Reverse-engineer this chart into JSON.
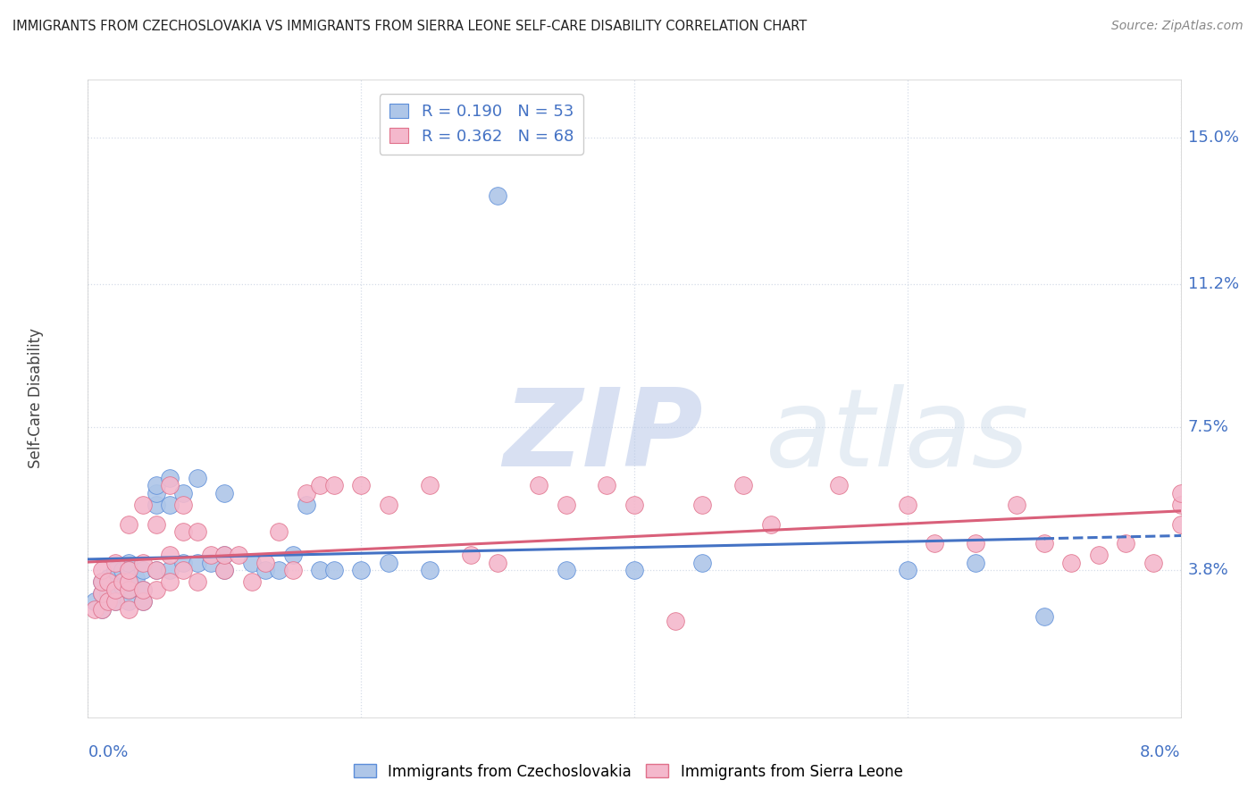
{
  "title": "IMMIGRANTS FROM CZECHOSLOVAKIA VS IMMIGRANTS FROM SIERRA LEONE SELF-CARE DISABILITY CORRELATION CHART",
  "source": "Source: ZipAtlas.com",
  "ylabel": "Self-Care Disability",
  "ytick_labels": [
    "15.0%",
    "11.2%",
    "7.5%",
    "3.8%"
  ],
  "ytick_values": [
    0.15,
    0.112,
    0.075,
    0.038
  ],
  "xlim": [
    0.0,
    0.08
  ],
  "ylim": [
    0.0,
    0.165
  ],
  "color_czech": "#aec6e8",
  "color_sierra": "#f4b8cc",
  "color_czech_edge": "#5b8dd9",
  "color_sierra_edge": "#e0708a",
  "color_line_czech": "#4472c4",
  "color_line_sierra": "#d9607a",
  "color_text_blue": "#4472c4",
  "color_grid": "#d5dce8",
  "czech_x": [
    0.0005,
    0.001,
    0.001,
    0.001,
    0.0015,
    0.0015,
    0.002,
    0.002,
    0.002,
    0.002,
    0.0025,
    0.0025,
    0.003,
    0.003,
    0.003,
    0.003,
    0.003,
    0.0035,
    0.004,
    0.004,
    0.004,
    0.005,
    0.005,
    0.005,
    0.005,
    0.006,
    0.006,
    0.006,
    0.007,
    0.007,
    0.008,
    0.008,
    0.009,
    0.01,
    0.01,
    0.01,
    0.012,
    0.013,
    0.014,
    0.015,
    0.016,
    0.017,
    0.018,
    0.02,
    0.022,
    0.025,
    0.03,
    0.035,
    0.04,
    0.045,
    0.06,
    0.065,
    0.07
  ],
  "czech_y": [
    0.03,
    0.028,
    0.032,
    0.035,
    0.032,
    0.036,
    0.03,
    0.033,
    0.036,
    0.038,
    0.034,
    0.038,
    0.03,
    0.033,
    0.035,
    0.038,
    0.04,
    0.036,
    0.03,
    0.033,
    0.038,
    0.038,
    0.055,
    0.058,
    0.06,
    0.038,
    0.055,
    0.062,
    0.04,
    0.058,
    0.04,
    0.062,
    0.04,
    0.038,
    0.042,
    0.058,
    0.04,
    0.038,
    0.038,
    0.042,
    0.055,
    0.038,
    0.038,
    0.038,
    0.04,
    0.038,
    0.135,
    0.038,
    0.038,
    0.04,
    0.038,
    0.04,
    0.026
  ],
  "sierra_x": [
    0.0005,
    0.001,
    0.001,
    0.001,
    0.001,
    0.0015,
    0.0015,
    0.002,
    0.002,
    0.002,
    0.0025,
    0.003,
    0.003,
    0.003,
    0.003,
    0.003,
    0.004,
    0.004,
    0.004,
    0.004,
    0.005,
    0.005,
    0.005,
    0.006,
    0.006,
    0.006,
    0.007,
    0.007,
    0.007,
    0.008,
    0.008,
    0.009,
    0.01,
    0.01,
    0.011,
    0.012,
    0.013,
    0.014,
    0.015,
    0.016,
    0.017,
    0.018,
    0.02,
    0.022,
    0.025,
    0.028,
    0.03,
    0.033,
    0.035,
    0.038,
    0.04,
    0.043,
    0.045,
    0.048,
    0.05,
    0.055,
    0.06,
    0.062,
    0.065,
    0.068,
    0.07,
    0.072,
    0.074,
    0.076,
    0.078,
    0.08,
    0.08,
    0.08
  ],
  "sierra_y": [
    0.028,
    0.028,
    0.032,
    0.035,
    0.038,
    0.03,
    0.035,
    0.03,
    0.033,
    0.04,
    0.035,
    0.028,
    0.033,
    0.035,
    0.038,
    0.05,
    0.03,
    0.033,
    0.04,
    0.055,
    0.033,
    0.038,
    0.05,
    0.035,
    0.042,
    0.06,
    0.038,
    0.048,
    0.055,
    0.035,
    0.048,
    0.042,
    0.038,
    0.042,
    0.042,
    0.035,
    0.04,
    0.048,
    0.038,
    0.058,
    0.06,
    0.06,
    0.06,
    0.055,
    0.06,
    0.042,
    0.04,
    0.06,
    0.055,
    0.06,
    0.055,
    0.025,
    0.055,
    0.06,
    0.05,
    0.06,
    0.055,
    0.045,
    0.045,
    0.055,
    0.045,
    0.04,
    0.042,
    0.045,
    0.04,
    0.05,
    0.055,
    0.058
  ]
}
